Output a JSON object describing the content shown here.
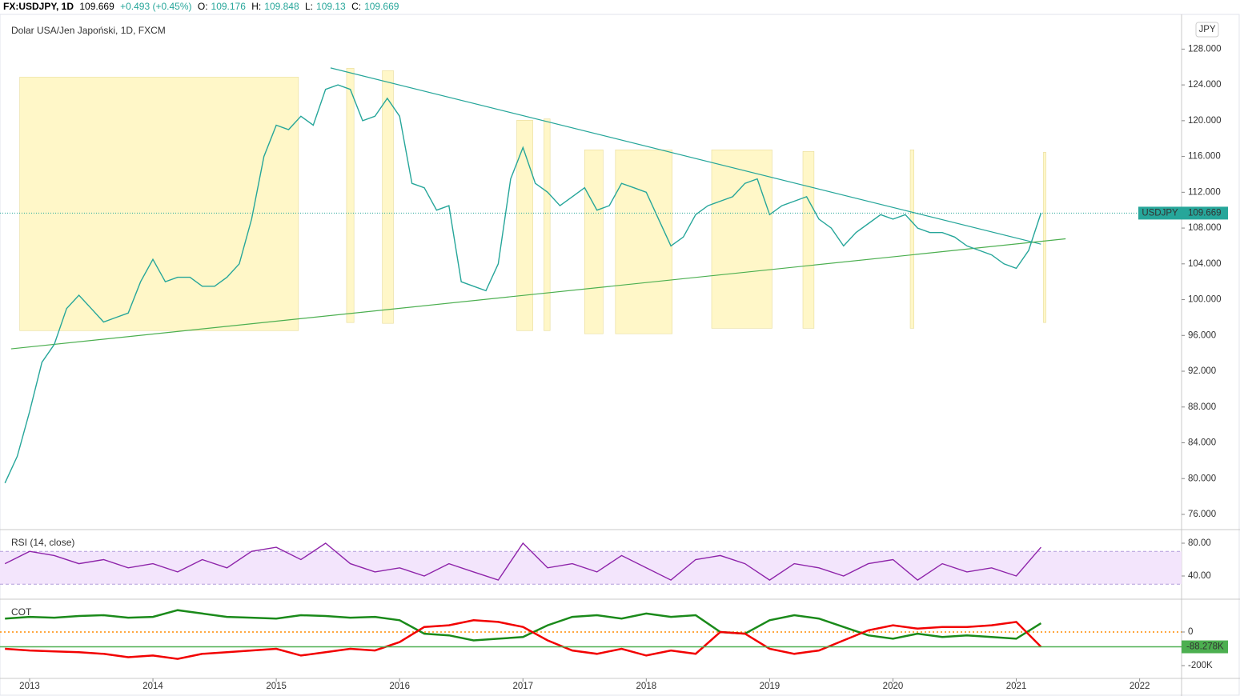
{
  "header": {
    "symbol": "FX:USDJPY, 1D",
    "price": 109.669,
    "change": "+0.493 (+0.45%)",
    "o_label": "O:",
    "open": 109.176,
    "h_label": "H:",
    "high": 109.848,
    "l_label": "L:",
    "low": 109.13,
    "c_label": "C:",
    "close": 109.669
  },
  "chart_data": [
    {
      "type": "line",
      "title": "Dolar USA/Jen Japoński, 1D, FXCM",
      "currency": "JPY",
      "color": "#26a69a",
      "x": [
        2012.8,
        2012.9,
        2013.0,
        2013.1,
        2013.2,
        2013.3,
        2013.4,
        2013.5,
        2013.6,
        2013.7,
        2013.8,
        2013.9,
        2014.0,
        2014.1,
        2014.2,
        2014.3,
        2014.4,
        2014.5,
        2014.6,
        2014.7,
        2014.8,
        2014.9,
        2015.0,
        2015.1,
        2015.2,
        2015.3,
        2015.4,
        2015.5,
        2015.6,
        2015.7,
        2015.8,
        2015.9,
        2016.0,
        2016.1,
        2016.2,
        2016.3,
        2016.4,
        2016.5,
        2016.6,
        2016.7,
        2016.8,
        2016.9,
        2017.0,
        2017.1,
        2017.2,
        2017.3,
        2017.4,
        2017.5,
        2017.6,
        2017.7,
        2017.8,
        2017.9,
        2018.0,
        2018.1,
        2018.2,
        2018.3,
        2018.4,
        2018.5,
        2018.6,
        2018.7,
        2018.8,
        2018.9,
        2019.0,
        2019.1,
        2019.2,
        2019.3,
        2019.4,
        2019.5,
        2019.6,
        2019.7,
        2019.8,
        2019.9,
        2020.0,
        2020.1,
        2020.2,
        2020.3,
        2020.4,
        2020.5,
        2020.6,
        2020.7,
        2020.8,
        2020.9,
        2021.0,
        2021.1,
        2021.2
      ],
      "values": [
        79.5,
        82.5,
        87.5,
        93,
        95,
        99,
        100.5,
        99,
        97.5,
        98,
        98.5,
        102,
        104.5,
        102,
        102.5,
        102.5,
        101.5,
        101.5,
        102.5,
        104,
        109,
        116,
        119.5,
        119,
        120.5,
        119.5,
        123.5,
        124,
        123.5,
        120,
        120.5,
        122.5,
        120.5,
        113,
        112.5,
        110,
        110.5,
        102,
        101.5,
        101,
        104,
        113.5,
        117,
        113,
        112,
        110.5,
        111.5,
        112.5,
        110,
        110.5,
        113,
        112.5,
        112,
        109,
        106,
        107,
        109.5,
        110.5,
        111,
        111.5,
        113,
        113.5,
        109.5,
        110.5,
        111,
        111.5,
        109,
        108,
        106,
        107.5,
        108.5,
        109.5,
        109,
        109.5,
        108,
        107.5,
        107.5,
        107,
        106,
        105.5,
        105,
        104,
        103.5,
        105.5,
        109.669
      ],
      "xlim": [
        2012.76,
        2022.34
      ],
      "xticks": [
        2013,
        2014,
        2015,
        2016,
        2017,
        2018,
        2019,
        2020,
        2021,
        2022
      ],
      "ylim": [
        74.3,
        131.7
      ],
      "yticks": [
        {
          "value": 76,
          "label": "76.000"
        },
        {
          "value": 80,
          "label": "80.000"
        },
        {
          "value": 84,
          "label": "84.000"
        },
        {
          "value": 88,
          "label": "88.000"
        },
        {
          "value": 92,
          "label": "92.000"
        },
        {
          "value": 96,
          "label": "96.000"
        },
        {
          "value": 100,
          "label": "100.000"
        },
        {
          "value": 104,
          "label": "104.000"
        },
        {
          "value": 108,
          "label": "108.000"
        },
        {
          "value": 112,
          "label": "112.000"
        },
        {
          "value": 116,
          "label": "116.000"
        },
        {
          "value": 120,
          "label": "120.000"
        },
        {
          "value": 124,
          "label": "124.000"
        },
        {
          "value": 128,
          "label": "128.000"
        }
      ],
      "last": {
        "name": "USDJPY",
        "value": 109.669
      },
      "trendlines": [
        {
          "x": [
            2015.44,
            2021.2
          ],
          "y": [
            125.9,
            106.2
          ],
          "color": "#26a69a"
        },
        {
          "x": [
            2012.85,
            2021.4
          ],
          "y": [
            94.5,
            106.8
          ],
          "color": "#4caf50"
        }
      ],
      "highlights": [
        {
          "x": [
            2012.92,
            2015.18
          ],
          "y": [
            96.54,
            124.87
          ]
        },
        {
          "x": [
            2015.57,
            2015.63
          ],
          "y": [
            97.44,
            125.86
          ]
        },
        {
          "x": [
            2015.86,
            2015.95
          ],
          "y": [
            97.35,
            125.6
          ]
        },
        {
          "x": [
            2016.95,
            2017.08
          ],
          "y": [
            96.54,
            120.05
          ]
        },
        {
          "x": [
            2017.17,
            2017.22
          ],
          "y": [
            96.54,
            120.2
          ]
        },
        {
          "x": [
            2017.5,
            2017.65
          ],
          "y": [
            96.19,
            116.74
          ]
        },
        {
          "x": [
            2017.75,
            2018.21
          ],
          "y": [
            96.19,
            116.74
          ]
        },
        {
          "x": [
            2018.53,
            2019.02
          ],
          "y": [
            96.8,
            116.74
          ]
        },
        {
          "x": [
            2019.27,
            2019.36
          ],
          "y": [
            96.8,
            116.56
          ]
        },
        {
          "x": [
            2020.14,
            2020.17
          ],
          "y": [
            96.8,
            116.74
          ]
        },
        {
          "x": [
            2021.22,
            2021.24
          ],
          "y": [
            97.44,
            116.47
          ]
        }
      ],
      "highlight_color": "#fff3b0"
    },
    {
      "type": "line",
      "title": "RSI (14, close)",
      "color": "#8e24aa",
      "band": [
        30,
        70
      ],
      "band_color": "#f3e5fc",
      "x": [
        2012.8,
        2013.0,
        2013.2,
        2013.4,
        2013.6,
        2013.8,
        2014.0,
        2014.2,
        2014.4,
        2014.6,
        2014.8,
        2015.0,
        2015.2,
        2015.4,
        2015.6,
        2015.8,
        2016.0,
        2016.2,
        2016.4,
        2016.6,
        2016.8,
        2017.0,
        2017.2,
        2017.4,
        2017.6,
        2017.8,
        2018.0,
        2018.2,
        2018.4,
        2018.6,
        2018.8,
        2019.0,
        2019.2,
        2019.4,
        2019.6,
        2019.8,
        2020.0,
        2020.2,
        2020.4,
        2020.6,
        2020.8,
        2021.0,
        2021.2
      ],
      "values": [
        55,
        70,
        65,
        55,
        60,
        50,
        55,
        45,
        60,
        50,
        70,
        75,
        60,
        80,
        55,
        45,
        50,
        40,
        55,
        45,
        35,
        80,
        50,
        55,
        45,
        65,
        50,
        35,
        60,
        65,
        55,
        35,
        55,
        50,
        40,
        55,
        60,
        35,
        55,
        45,
        50,
        40,
        75
      ],
      "ylim": [
        12.7,
        95.6
      ],
      "yticks": [
        {
          "value": 40,
          "label": "40.00"
        },
        {
          "value": 80,
          "label": "80.00"
        }
      ]
    },
    {
      "type": "line",
      "title": "COT",
      "x": [
        2012.8,
        2013.0,
        2013.2,
        2013.4,
        2013.6,
        2013.8,
        2014.0,
        2014.2,
        2014.4,
        2014.6,
        2014.8,
        2015.0,
        2015.2,
        2015.4,
        2015.6,
        2015.8,
        2016.0,
        2016.2,
        2016.4,
        2016.6,
        2016.8,
        2017.0,
        2017.2,
        2017.4,
        2017.6,
        2017.8,
        2018.0,
        2018.2,
        2018.4,
        2018.6,
        2018.8,
        2019.0,
        2019.2,
        2019.4,
        2019.6,
        2019.8,
        2020.0,
        2020.2,
        2020.4,
        2020.6,
        2020.8,
        2021.0,
        2021.2
      ],
      "series": [
        {
          "color": "#1a8a1a",
          "values": [
            80000,
            90000,
            85000,
            95000,
            100000,
            85000,
            90000,
            130000,
            110000,
            90000,
            85000,
            80000,
            100000,
            95000,
            85000,
            90000,
            70000,
            -10000,
            -20000,
            -50000,
            -40000,
            -30000,
            40000,
            90000,
            100000,
            80000,
            110000,
            90000,
            100000,
            0,
            -10000,
            70000,
            100000,
            80000,
            30000,
            -20000,
            -40000,
            -10000,
            -30000,
            -20000,
            -30000,
            -40000,
            52000
          ]
        },
        {
          "color": "#f20000",
          "values": [
            -100000,
            -110000,
            -115000,
            -120000,
            -130000,
            -150000,
            -140000,
            -160000,
            -130000,
            -120000,
            -110000,
            -100000,
            -140000,
            -120000,
            -100000,
            -110000,
            -60000,
            30000,
            40000,
            70000,
            60000,
            30000,
            -50000,
            -110000,
            -130000,
            -100000,
            -140000,
            -110000,
            -130000,
            0,
            -10000,
            -100000,
            -130000,
            -110000,
            -50000,
            10000,
            40000,
            20000,
            30000,
            30000,
            40000,
            60000,
            -88278
          ]
        }
      ],
      "ylim": [
        -276190,
        190476
      ],
      "yticks": [
        0,
        {
          "value": -200000,
          "label": "-200K"
        }
      ],
      "last": {
        "value": -88278,
        "label": "-88.278K",
        "color": "#4caf50"
      }
    }
  ]
}
